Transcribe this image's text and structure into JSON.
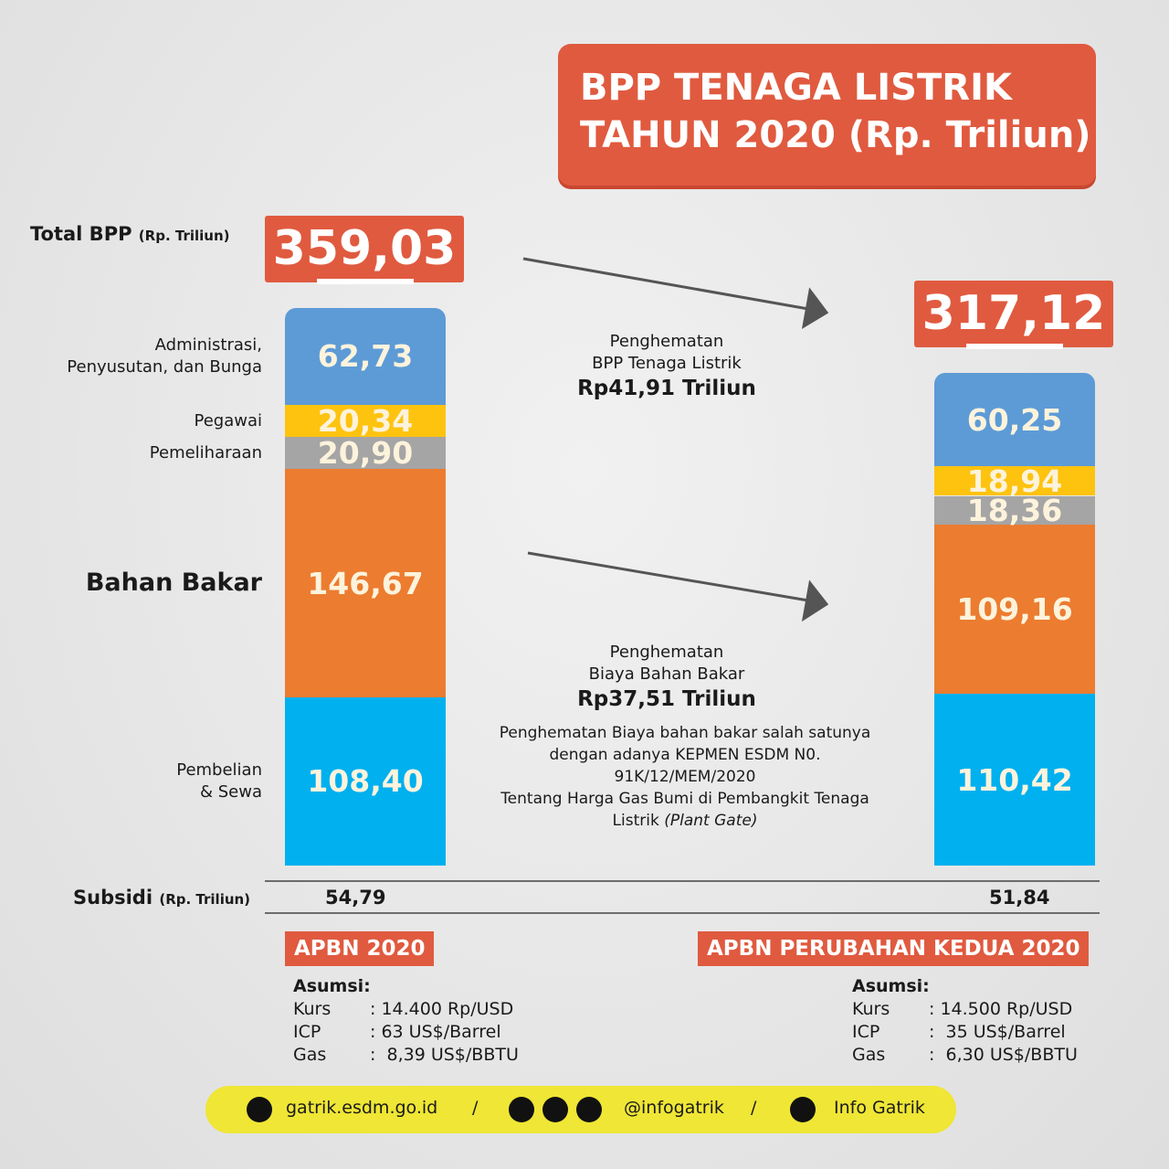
{
  "chart_data": {
    "type": "stacked-bar",
    "title": [
      "BPP TENAGA LISTRIK",
      "TAHUN 2020 (Rp. Triliun)"
    ],
    "categories": [
      "APBN 2020",
      "APBN PERUBAHAN KEDUA 2020"
    ],
    "series": [
      {
        "name": "Pembelian\n& Sewa",
        "color": "#00b0ef",
        "values": [
          108.4,
          110.42
        ],
        "value_labels": [
          "108,40",
          "110,42"
        ]
      },
      {
        "name": "Bahan Bakar",
        "color": "#ec7c30",
        "values": [
          146.67,
          109.16
        ],
        "value_labels": [
          "146,67",
          "109,16"
        ]
      },
      {
        "name": "Pemeliharaan",
        "color": "#a5a5a5",
        "values": [
          20.9,
          18.36
        ],
        "value_labels": [
          "20,90",
          "18,36"
        ]
      },
      {
        "name": "Pegawai",
        "color": "#fdc30f",
        "values": [
          20.34,
          18.94
        ],
        "value_labels": [
          "20,34",
          "18,94"
        ]
      },
      {
        "name": "Administrasi,\nPenyusutan, dan Bunga",
        "color": "#5d9bd6",
        "values": [
          62.73,
          60.25
        ],
        "value_labels": [
          "62,73",
          "60,25"
        ]
      }
    ],
    "totals": [
      359.03,
      317.12
    ],
    "total_labels": [
      "359,03",
      "317,12"
    ],
    "total_label": "Total BPP",
    "total_unit": "(Rp. Triliun)",
    "annotations": {
      "bpp_savings": [
        "Penghematan",
        "BPP Tenaga Listrik",
        "Rp41,91 Triliun"
      ],
      "fuel_savings": [
        "Penghematan",
        "Biaya Bahan Bakar",
        "Rp37,51 Triliun"
      ],
      "note": [
        "Penghematan Biaya bahan bakar  salah satunya",
        "dengan adanya KEPMEN ESDM N0.",
        "91K/12/MEM/2020",
        "Tentang Harga Gas Bumi di Pembangkit Tenaga",
        "Listrik ",
        "(Plant Gate)"
      ]
    }
  },
  "subsidi": {
    "label": "Subsidi",
    "unit": "(Rp. Triliun)",
    "values": [
      "54,79",
      "51,84"
    ]
  },
  "assumptions": [
    {
      "title": "Asumsi:",
      "rows": [
        [
          "Kurs",
          ": 14.400 Rp/USD"
        ],
        [
          "ICP",
          ": 63 US$/Barrel"
        ],
        [
          "Gas",
          ":  8,39 US$/BBTU"
        ]
      ]
    },
    {
      "title": "Asumsi:",
      "rows": [
        [
          "Kurs",
          ": 14.500 Rp/USD"
        ],
        [
          "ICP",
          ":  35 US$/Barrel"
        ],
        [
          "Gas",
          ":  6,30 US$/BBTU"
        ]
      ]
    }
  ],
  "footer": {
    "website": "gatrik.esdm.go.id",
    "social": "@infogatrik",
    "youtube": "Info Gatrik",
    "separator": "/"
  }
}
